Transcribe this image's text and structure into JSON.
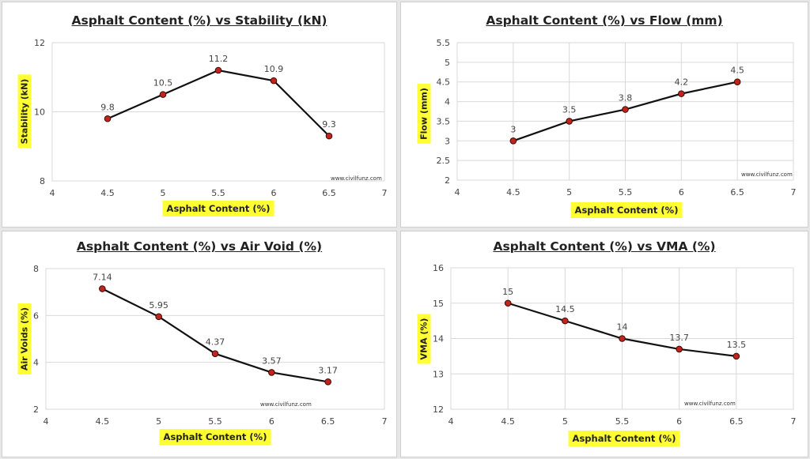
{
  "chart_data": [
    {
      "type": "line",
      "title": "Asphalt Content (%) vs Stability (kN)",
      "xlabel": "Asphalt Content (%)",
      "ylabel": "Stability (kN)",
      "xlim": [
        4,
        7
      ],
      "ylim": [
        8,
        12
      ],
      "xticks": [
        "4",
        "4.5",
        "5",
        "5.5",
        "6",
        "6.5",
        "7"
      ],
      "yticks": [
        "8",
        "10",
        "12"
      ],
      "x": [
        4.5,
        5,
        5.5,
        6,
        6.5
      ],
      "values": [
        9.8,
        10.5,
        11.2,
        10.9,
        9.3
      ],
      "data_labels": [
        "9.8",
        "10.5",
        "11.2",
        "10.9",
        "9.3"
      ],
      "grid": "horizontal",
      "watermark": "www.civilfunz.com"
    },
    {
      "type": "line",
      "title": "Asphalt Content (%) vs Flow (mm)",
      "xlabel": "Asphalt Content (%)",
      "ylabel": "Flow (mm)",
      "xlim": [
        4,
        7
      ],
      "ylim": [
        2,
        5.5
      ],
      "xticks": [
        "4",
        "4.5",
        "5",
        "5.5",
        "6",
        "6.5",
        "7"
      ],
      "yticks": [
        "2",
        "2.5",
        "3",
        "3.5",
        "4",
        "4.5",
        "5",
        "5.5"
      ],
      "x": [
        4.5,
        5,
        5.5,
        6,
        6.5
      ],
      "values": [
        3,
        3.5,
        3.8,
        4.2,
        4.5
      ],
      "data_labels": [
        "3",
        "3.5",
        "3.8",
        "4.2",
        "4.5"
      ],
      "grid": "both",
      "watermark": "www.civilfunz.com"
    },
    {
      "type": "line",
      "title": "Asphalt Content (%) vs Air Void (%)",
      "xlabel": "Asphalt Content (%)",
      "ylabel": "Air Voids (%)",
      "xlim": [
        4,
        7
      ],
      "ylim": [
        2,
        8
      ],
      "xticks": [
        "4",
        "4.5",
        "5",
        "5.5",
        "6",
        "6.5",
        "7"
      ],
      "yticks": [
        "2",
        "4",
        "6",
        "8"
      ],
      "x": [
        4.5,
        5,
        5.5,
        6,
        6.5
      ],
      "values": [
        7.14,
        5.95,
        4.37,
        3.57,
        3.17
      ],
      "data_labels": [
        "7.14",
        "5.95",
        "4.37",
        "3.57",
        "3.17"
      ],
      "grid": "horizontal",
      "watermark": "www.civilfunz.com"
    },
    {
      "type": "line",
      "title": "Asphalt Content (%) vs VMA (%)",
      "xlabel": "Asphalt Content (%)",
      "ylabel": "VMA (%)",
      "xlim": [
        4,
        7
      ],
      "ylim": [
        12,
        16
      ],
      "xticks": [
        "4",
        "4.5",
        "5",
        "5.5",
        "6",
        "6.5",
        "7"
      ],
      "yticks": [
        "12",
        "13",
        "14",
        "15",
        "16"
      ],
      "x": [
        4.5,
        5,
        5.5,
        6,
        6.5
      ],
      "values": [
        15,
        14.5,
        14,
        13.7,
        13.5
      ],
      "data_labels": [
        "15",
        "14.5",
        "14",
        "13.7",
        "13.5"
      ],
      "grid": "both",
      "watermark": "www.civilfunz.com"
    }
  ],
  "colors": {
    "line": "#111111",
    "marker_fill": "#c0241c",
    "label_highlight": "#ffff33",
    "grid": "#d9d9d9"
  }
}
